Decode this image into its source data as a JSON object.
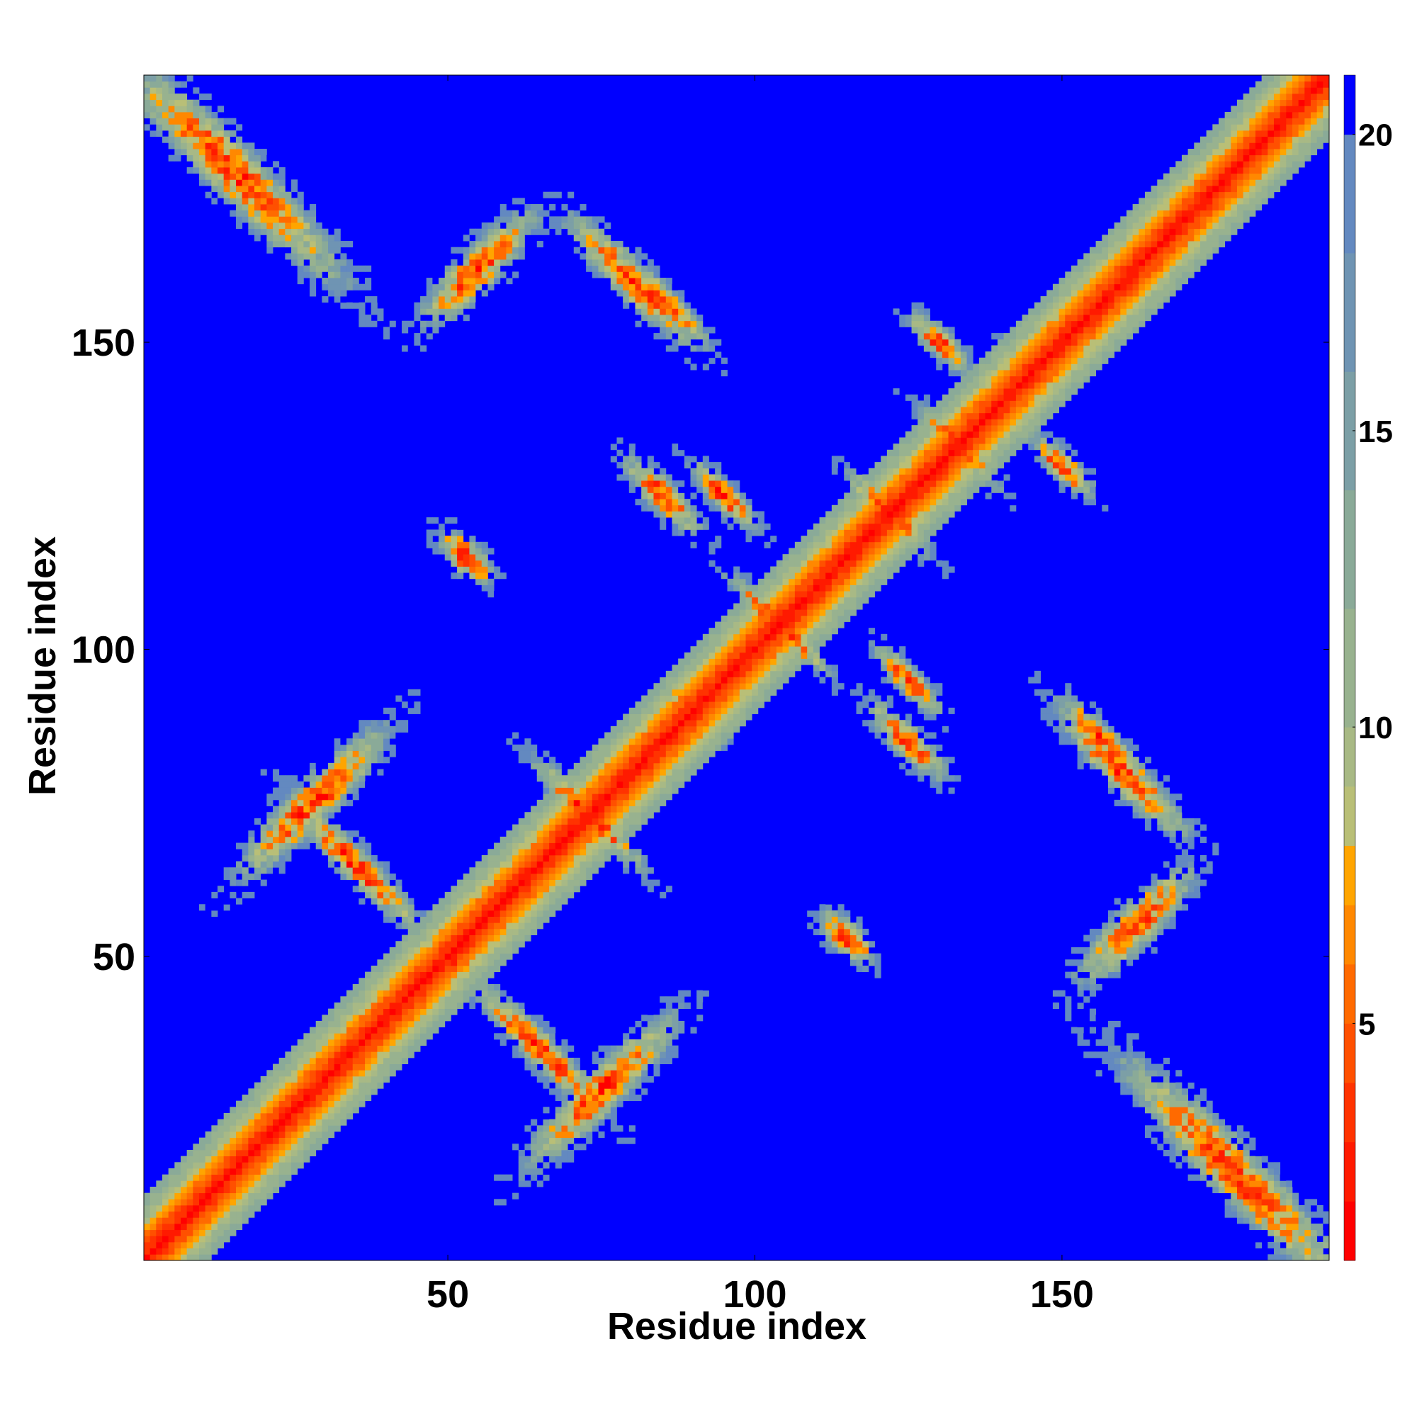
{
  "chart_data": {
    "type": "heatmap",
    "title": "",
    "xlabel": "Residue index",
    "ylabel": "Residue index",
    "xlim": [
      1,
      193
    ],
    "ylim": [
      1,
      193
    ],
    "x_ticks": [
      50,
      100,
      150
    ],
    "y_ticks": [
      50,
      100,
      150
    ],
    "x_tick_labels": [
      "50",
      "100",
      "150"
    ],
    "y_tick_labels": [
      "50",
      "100",
      "150"
    ],
    "grid": false,
    "legend": "none",
    "colorbar": {
      "placement": "right",
      "range": [
        1,
        21
      ],
      "ticks": [
        5,
        10,
        15,
        20
      ],
      "tick_labels": [
        "5",
        "10",
        "15",
        "20"
      ],
      "levels": [
        {
          "max": 2,
          "color": "#ff0000"
        },
        {
          "max": 3,
          "color": "#ff1a00"
        },
        {
          "max": 4,
          "color": "#ff3300"
        },
        {
          "max": 5,
          "color": "#ff5000"
        },
        {
          "max": 6,
          "color": "#ff6a00"
        },
        {
          "max": 7,
          "color": "#ff8800"
        },
        {
          "max": 8,
          "color": "#ffa500"
        },
        {
          "max": 9,
          "color": "#b9bf77"
        },
        {
          "max": 10,
          "color": "#a8b985"
        },
        {
          "max": 12,
          "color": "#98b28f"
        },
        {
          "max": 14,
          "color": "#8aaa98"
        },
        {
          "max": 16,
          "color": "#7c9fa6"
        },
        {
          "max": 18,
          "color": "#6f94b3"
        },
        {
          "max": 20,
          "color": "#6389c0"
        },
        {
          "max": 21,
          "color": "#0000ff"
        }
      ]
    },
    "background_color": "#0000ff",
    "diagonal_color": "#ff0000",
    "contact_regions": [
      {
        "center": [
          15,
          178
        ],
        "direction": "anti",
        "length": 60,
        "width": 10
      },
      {
        "center": [
          178,
          15
        ],
        "direction": "anti",
        "length": 60,
        "width": 10
      },
      {
        "center": [
          55,
          162
        ],
        "direction": "parallel",
        "length": 30,
        "width": 8
      },
      {
        "center": [
          162,
          55
        ],
        "direction": "parallel",
        "length": 30,
        "width": 8
      },
      {
        "center": [
          85,
          157
        ],
        "direction": "anti",
        "length": 25,
        "width": 5
      },
      {
        "center": [
          157,
          85
        ],
        "direction": "anti",
        "length": 25,
        "width": 5
      },
      {
        "center": [
          73,
          73
        ],
        "direction": "anti",
        "length": 30,
        "width": 5
      },
      {
        "center": [
          50,
          50
        ],
        "direction": "anti",
        "length": 14,
        "width": 4
      },
      {
        "center": [
          104,
          104
        ],
        "direction": "anti",
        "length": 28,
        "width": 4
      },
      {
        "center": [
          122,
          122
        ],
        "direction": "anti",
        "length": 22,
        "width": 5
      },
      {
        "center": [
          133,
          133
        ],
        "direction": "anti",
        "length": 22,
        "width": 5
      },
      {
        "center": [
          145,
          145
        ],
        "direction": "anti",
        "length": 14,
        "width": 4
      },
      {
        "center": [
          28,
          75
        ],
        "direction": "parallel",
        "length": 40,
        "width": 8
      },
      {
        "center": [
          75,
          28
        ],
        "direction": "parallel",
        "length": 40,
        "width": 8
      },
      {
        "center": [
          65,
          35
        ],
        "direction": "anti",
        "length": 35,
        "width": 6
      },
      {
        "center": [
          35,
          65
        ],
        "direction": "anti",
        "length": 35,
        "width": 6
      },
      {
        "center": [
          90,
          90
        ],
        "direction": "anti",
        "length": 14,
        "width": 4
      },
      {
        "center": [
          53,
          115
        ],
        "direction": "anti",
        "length": 14,
        "width": 6
      },
      {
        "center": [
          115,
          53
        ],
        "direction": "anti",
        "length": 14,
        "width": 6
      },
      {
        "center": [
          85,
          125
        ],
        "direction": "anti",
        "length": 20,
        "width": 6
      },
      {
        "center": [
          125,
          85
        ],
        "direction": "anti",
        "length": 20,
        "width": 6
      },
      {
        "center": [
          125,
          95
        ],
        "direction": "anti",
        "length": 18,
        "width": 5
      },
      {
        "center": [
          95,
          125
        ],
        "direction": "anti",
        "length": 18,
        "width": 5
      },
      {
        "center": [
          150,
          130
        ],
        "direction": "anti",
        "length": 16,
        "width": 5
      },
      {
        "center": [
          130,
          150
        ],
        "direction": "anti",
        "length": 16,
        "width": 5
      },
      {
        "center": [
          160,
          80
        ],
        "direction": "anti",
        "length": 35,
        "width": 7
      },
      {
        "center": [
          80,
          160
        ],
        "direction": "anti",
        "length": 35,
        "width": 7
      }
    ]
  }
}
